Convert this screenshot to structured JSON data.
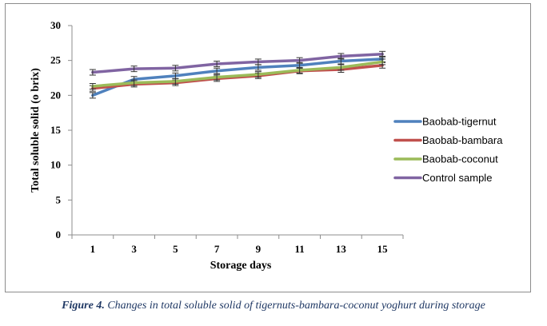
{
  "caption": {
    "label": "Figure 4.",
    "text": "Changes in total soluble solid of tigernuts-bambara-coconut yoghurt during storage"
  },
  "chart_data": {
    "type": "line",
    "title": "",
    "xlabel": "Storage days",
    "ylabel": "Total soluble solid (o brix)",
    "categories": [
      "1",
      "3",
      "5",
      "7",
      "9",
      "11",
      "13",
      "15"
    ],
    "ylim": [
      0,
      30
    ],
    "yticks": [
      0,
      5,
      10,
      15,
      20,
      25,
      30
    ],
    "grid": false,
    "legend_position": "right",
    "error_bars": 0.4,
    "series": [
      {
        "name": "Baobab-tigernut",
        "color": "#4f81bd",
        "values": [
          20.0,
          22.3,
          22.8,
          23.5,
          24.0,
          24.3,
          24.9,
          25.2
        ]
      },
      {
        "name": "Baobab-bambara",
        "color": "#c0504d",
        "values": [
          21.0,
          21.6,
          21.8,
          22.4,
          22.8,
          23.5,
          23.7,
          24.3
        ]
      },
      {
        "name": "Baobab-coconut",
        "color": "#9bbb59",
        "values": [
          21.3,
          21.8,
          22.0,
          22.6,
          23.0,
          23.6,
          24.0,
          24.8
        ]
      },
      {
        "name": "Control sample",
        "color": "#8064a2",
        "values": [
          23.3,
          23.8,
          23.9,
          24.5,
          24.8,
          25.0,
          25.6,
          25.9
        ]
      }
    ]
  }
}
